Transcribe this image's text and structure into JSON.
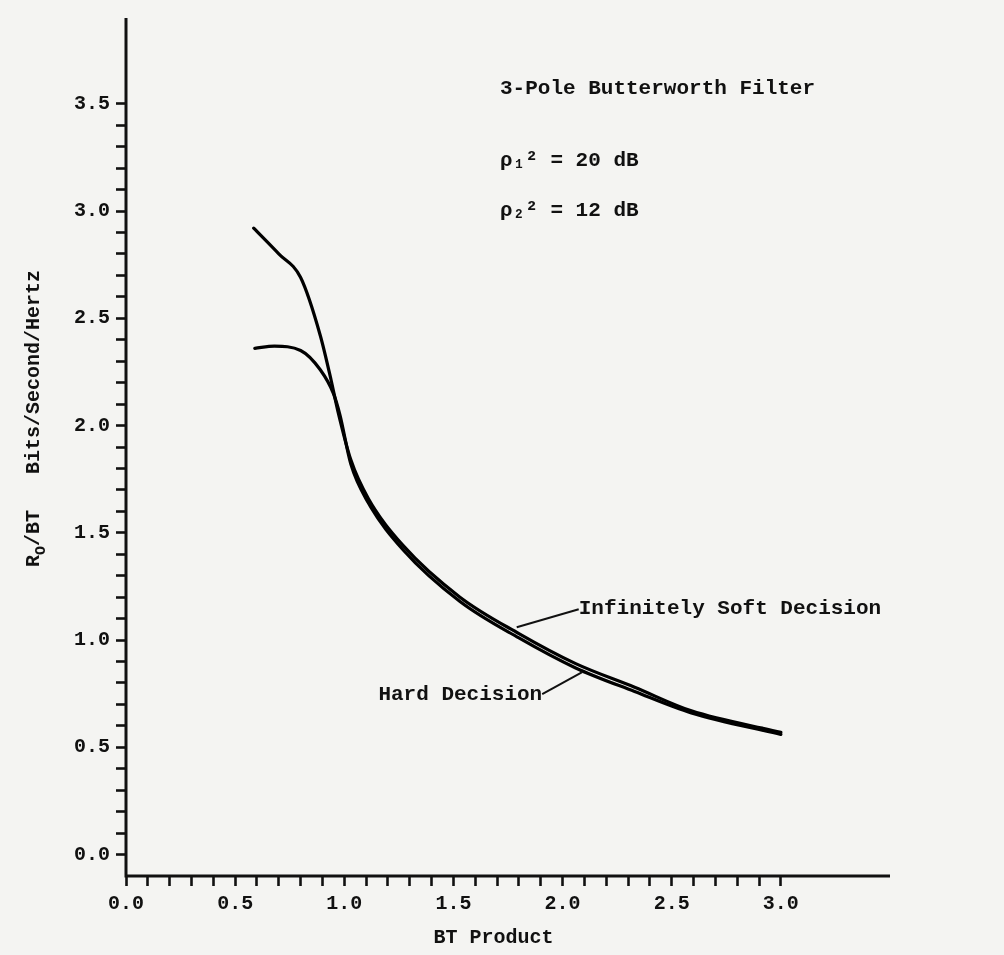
{
  "chart_data": {
    "type": "line",
    "xlabel": "BT Product",
    "ylabel": "R$_{O}$/BT   Bits/Second/Hertz",
    "annotations": [
      "3-Pole Butterworth Filter",
      "ρ₁² = 20 dB",
      "ρ₂² = 12 dB",
      {
        "text": "Infinitely Soft Decision",
        "x": 1.79,
        "y": 1.06
      },
      {
        "text": "Hard Decision",
        "x": 2.09,
        "y": 0.85
      }
    ],
    "series": [
      {
        "color": "#000000",
        "x": [
          0.585,
          0.7,
          0.8,
          0.89,
          0.94,
          0.97,
          1.03,
          1.11,
          1.27,
          1.53,
          1.8,
          2.06,
          2.33,
          2.59,
          3.0
        ],
        "values": [
          2.92,
          2.8,
          2.69,
          2.42,
          2.21,
          2.07,
          1.84,
          1.66,
          1.44,
          1.2,
          1.03,
          0.89,
          0.78,
          0.67,
          0.57
        ]
      },
      {
        "color": "#000000",
        "x": [
          0.59,
          0.68,
          0.8,
          0.89,
          0.95,
          0.98,
          1.03,
          1.11,
          1.27,
          1.53,
          1.8,
          2.06,
          2.33,
          2.59,
          3.0
        ],
        "values": [
          2.36,
          2.37,
          2.35,
          2.26,
          2.15,
          2.05,
          1.82,
          1.64,
          1.42,
          1.18,
          1.01,
          0.87,
          0.76,
          0.66,
          0.56
        ]
      }
    ],
    "marker": "none",
    "line_style": "solid",
    "grid": false,
    "legend": false,
    "xlim": [
      0,
      3.5
    ],
    "ylim": [
      -0.1,
      3.9
    ],
    "xticks": [
      {
        "value": 0,
        "label": "0.0"
      },
      {
        "value": 0.1,
        "label": null
      },
      {
        "value": 0.2,
        "label": null
      },
      {
        "value": 0.3,
        "label": null
      },
      {
        "value": 0.4,
        "label": null
      },
      {
        "value": 0.5,
        "label": "0.5"
      },
      {
        "value": 0.6,
        "label": null
      },
      {
        "value": 0.7,
        "label": null
      },
      {
        "value": 0.8,
        "label": null
      },
      {
        "value": 0.9,
        "label": null
      },
      {
        "value": 1,
        "label": "1.0"
      },
      {
        "value": 1.1,
        "label": null
      },
      {
        "value": 1.2,
        "label": null
      },
      {
        "value": 1.3,
        "label": null
      },
      {
        "value": 1.4,
        "label": null
      },
      {
        "value": 1.5,
        "label": "1.5"
      },
      {
        "value": 1.6,
        "label": null
      },
      {
        "value": 1.7,
        "label": null
      },
      {
        "value": 1.8,
        "label": null
      },
      {
        "value": 1.9,
        "label": null
      },
      {
        "value": 2,
        "label": "2.0"
      },
      {
        "value": 2.1,
        "label": null
      },
      {
        "value": 2.2,
        "label": null
      },
      {
        "value": 2.3,
        "label": null
      },
      {
        "value": 2.4,
        "label": null
      },
      {
        "value": 2.5,
        "label": "2.5"
      },
      {
        "value": 2.6,
        "label": null
      },
      {
        "value": 2.7,
        "label": null
      },
      {
        "value": 2.8,
        "label": null
      },
      {
        "value": 2.9,
        "label": null
      },
      {
        "value": 3,
        "label": "3.0"
      }
    ],
    "yticks": [
      {
        "value": 0,
        "label": "0.0"
      },
      {
        "value": 0.1,
        "label": null
      },
      {
        "value": 0.2,
        "label": null
      },
      {
        "value": 0.3,
        "label": null
      },
      {
        "value": 0.4,
        "label": null
      },
      {
        "value": 0.5,
        "label": "0.5"
      },
      {
        "value": 0.6,
        "label": null
      },
      {
        "value": 0.7,
        "label": null
      },
      {
        "value": 0.8,
        "label": null
      },
      {
        "value": 0.9,
        "label": null
      },
      {
        "value": 1,
        "label": "1.0"
      },
      {
        "value": 1.1,
        "label": null
      },
      {
        "value": 1.2,
        "label": null
      },
      {
        "value": 1.3,
        "label": null
      },
      {
        "value": 1.4,
        "label": null
      },
      {
        "value": 1.5,
        "label": "1.5"
      },
      {
        "value": 1.6,
        "label": null
      },
      {
        "value": 1.7,
        "label": null
      },
      {
        "value": 1.8,
        "label": null
      },
      {
        "value": 1.9,
        "label": null
      },
      {
        "value": 2,
        "label": "2.0"
      },
      {
        "value": 2.1,
        "label": null
      },
      {
        "value": 2.2,
        "label": null
      },
      {
        "value": 2.3,
        "label": null
      },
      {
        "value": 2.4,
        "label": null
      },
      {
        "value": 2.5,
        "label": "2.5"
      },
      {
        "value": 2.6,
        "label": null
      },
      {
        "value": 2.7,
        "label": null
      },
      {
        "value": 2.8,
        "label": null
      },
      {
        "value": 2.9,
        "label": null
      },
      {
        "value": 3,
        "label": "3.0"
      },
      {
        "value": 3.1,
        "label": null
      },
      {
        "value": 3.2,
        "label": null
      },
      {
        "value": 3.3,
        "label": null
      },
      {
        "value": 3.4,
        "label": null
      },
      {
        "value": 3.5,
        "label": "3.5"
      }
    ]
  }
}
